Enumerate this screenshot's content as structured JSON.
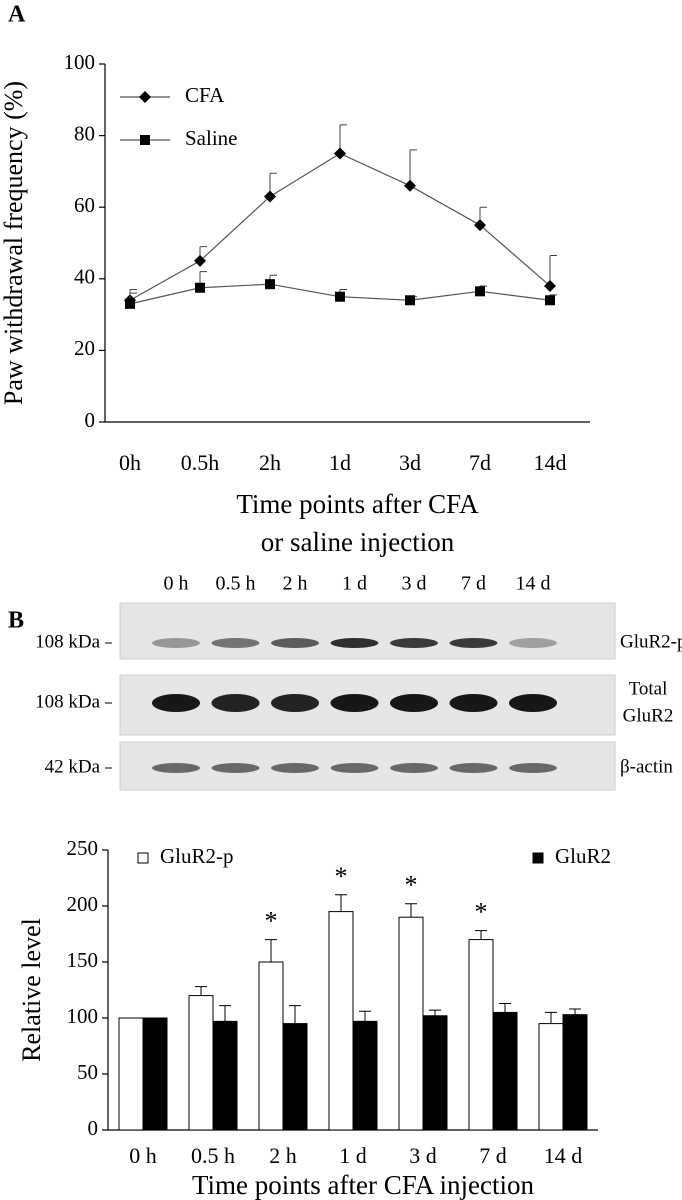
{
  "chart_data": [
    {
      "type": "line",
      "panel_label": "A",
      "y_label": "Paw withdrawal frequency (%)",
      "x_label": [
        "Time points after CFA",
        "or saline injection"
      ],
      "categories": [
        "0h",
        "0.5h",
        "2h",
        "1d",
        "3d",
        "7d",
        "14d"
      ],
      "series": [
        {
          "name": "CFA",
          "color": "#000000",
          "marker": "diamond",
          "values": [
            34,
            45,
            63,
            75,
            66,
            55,
            38
          ],
          "errors": [
            3,
            4,
            6.5,
            8,
            10,
            5,
            8.5
          ]
        },
        {
          "name": "Saline",
          "color": "#000000",
          "marker": "square",
          "values": [
            33,
            37.5,
            38.5,
            35,
            34,
            36.5,
            34
          ],
          "errors": [
            3,
            4.5,
            2.5,
            2,
            1,
            1.5,
            1.5
          ]
        }
      ],
      "ylim": [
        0,
        100
      ],
      "yticks": [
        0,
        20,
        40,
        60,
        80,
        100
      ],
      "legend": "upper left"
    },
    {
      "type": "bar",
      "panel_label": "B",
      "y_label": "Relative level",
      "x_label": [
        "Time points after CFA injection"
      ],
      "categories": [
        "0 h",
        "0.5 h",
        "2 h",
        "1 d",
        "3 d",
        "7 d",
        "14 d"
      ],
      "series": [
        {
          "name": "GluR2-p",
          "color": "#ffffff",
          "values": [
            100,
            120,
            150,
            195,
            190,
            170,
            95
          ],
          "errors": [
            0,
            8,
            20,
            15,
            12,
            8,
            10
          ]
        },
        {
          "name": "GluR2",
          "color": "#000000",
          "values": [
            100,
            97,
            95,
            97,
            102,
            105,
            103
          ],
          "errors": [
            0,
            14,
            16,
            9,
            5,
            8,
            5
          ]
        }
      ],
      "significance": [
        null,
        null,
        "*",
        "*",
        "*",
        "*",
        null
      ],
      "ylim": [
        0,
        250
      ],
      "yticks": [
        0,
        50,
        100,
        150,
        200,
        250
      ],
      "legend": "top"
    }
  ],
  "blot": {
    "lanes": [
      "0 h",
      "0.5 h",
      "2 h",
      "1 d",
      "3 d",
      "7 d",
      "14 d"
    ],
    "rows": [
      {
        "weight": "108 kDa",
        "label": [
          "GluR2-p"
        ]
      },
      {
        "weight": "108 kDa",
        "label": [
          "Total",
          "GluR2"
        ]
      },
      {
        "weight": "42 kDa",
        "label": [
          "β-actin"
        ]
      }
    ]
  }
}
